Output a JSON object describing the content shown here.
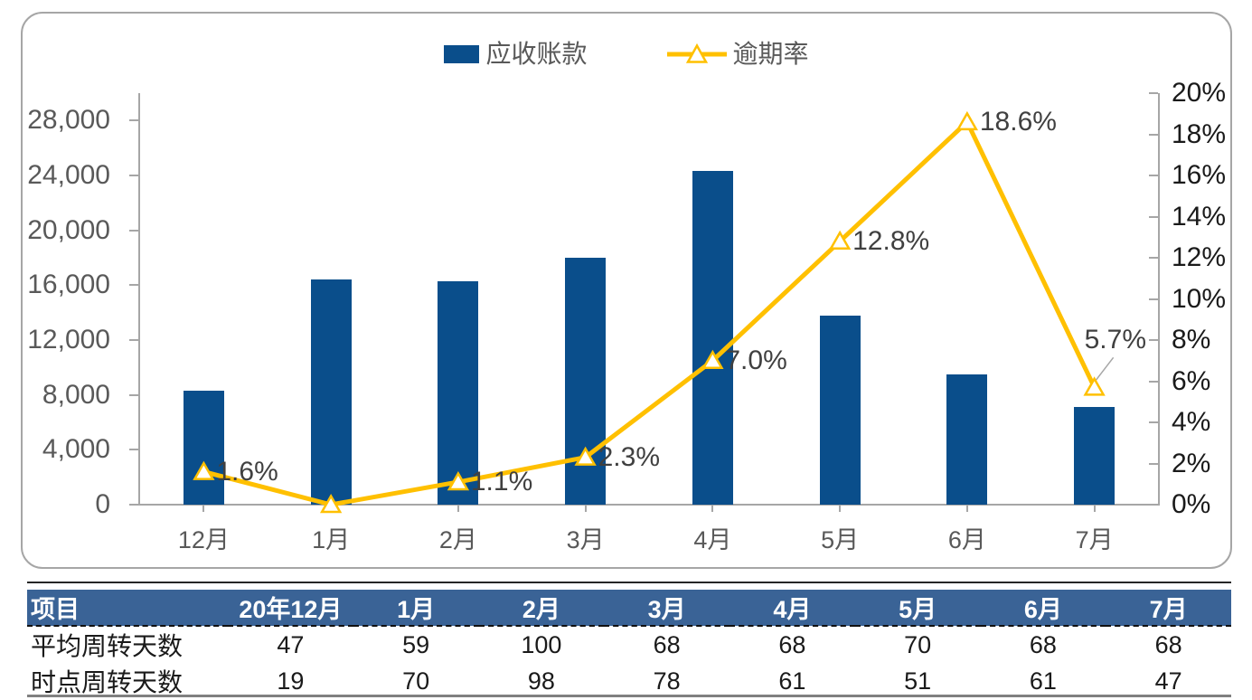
{
  "legend": {
    "bar_label": "应收账款",
    "line_label": "逾期率"
  },
  "colors": {
    "bar": "#0a4e8b",
    "line": "#ffc000",
    "marker_fill": "#ffffff",
    "axis": "#a6a6a6",
    "table_header_bg": "#3a6396",
    "table_header_text": "#ffffff"
  },
  "chart_data": {
    "type": "combo",
    "categories": [
      "12月",
      "1月",
      "2月",
      "3月",
      "4月",
      "5月",
      "6月",
      "7月"
    ],
    "series": [
      {
        "name": "应收账款",
        "type": "bar",
        "axis": "left",
        "values": [
          8300,
          16400,
          16300,
          18000,
          24300,
          13800,
          9500,
          7100
        ]
      },
      {
        "name": "逾期率",
        "type": "line",
        "axis": "right",
        "values": [
          1.6,
          0.0,
          1.1,
          2.3,
          7.0,
          12.8,
          18.6,
          5.7
        ],
        "point_labels": [
          "1.6%",
          "",
          "1.1%",
          "2.3%",
          "7.0%",
          "12.8%",
          "18.6%",
          "5.7%"
        ]
      }
    ],
    "left_axis": {
      "min": 0,
      "max": 30000,
      "step": 4000,
      "tick_labels": [
        "0",
        "4,000",
        "8,000",
        "12,000",
        "16,000",
        "20,000",
        "24,000",
        "28,000"
      ]
    },
    "right_axis": {
      "min": 0,
      "max": 20,
      "step": 2,
      "tick_labels": [
        "0%",
        "2%",
        "4%",
        "6%",
        "8%",
        "10%",
        "12%",
        "14%",
        "16%",
        "18%",
        "20%"
      ]
    },
    "grid": false,
    "legend_position": "top-center"
  },
  "table": {
    "header": [
      "项目",
      "20年12月",
      "1月",
      "2月",
      "3月",
      "4月",
      "5月",
      "6月",
      "7月"
    ],
    "rows": [
      {
        "label": "平均周转天数",
        "values": [
          "47",
          "59",
          "100",
          "68",
          "68",
          "70",
          "68",
          "68"
        ]
      },
      {
        "label": "时点周转天数",
        "values": [
          "19",
          "70",
          "98",
          "78",
          "61",
          "51",
          "61",
          "47"
        ]
      }
    ]
  }
}
